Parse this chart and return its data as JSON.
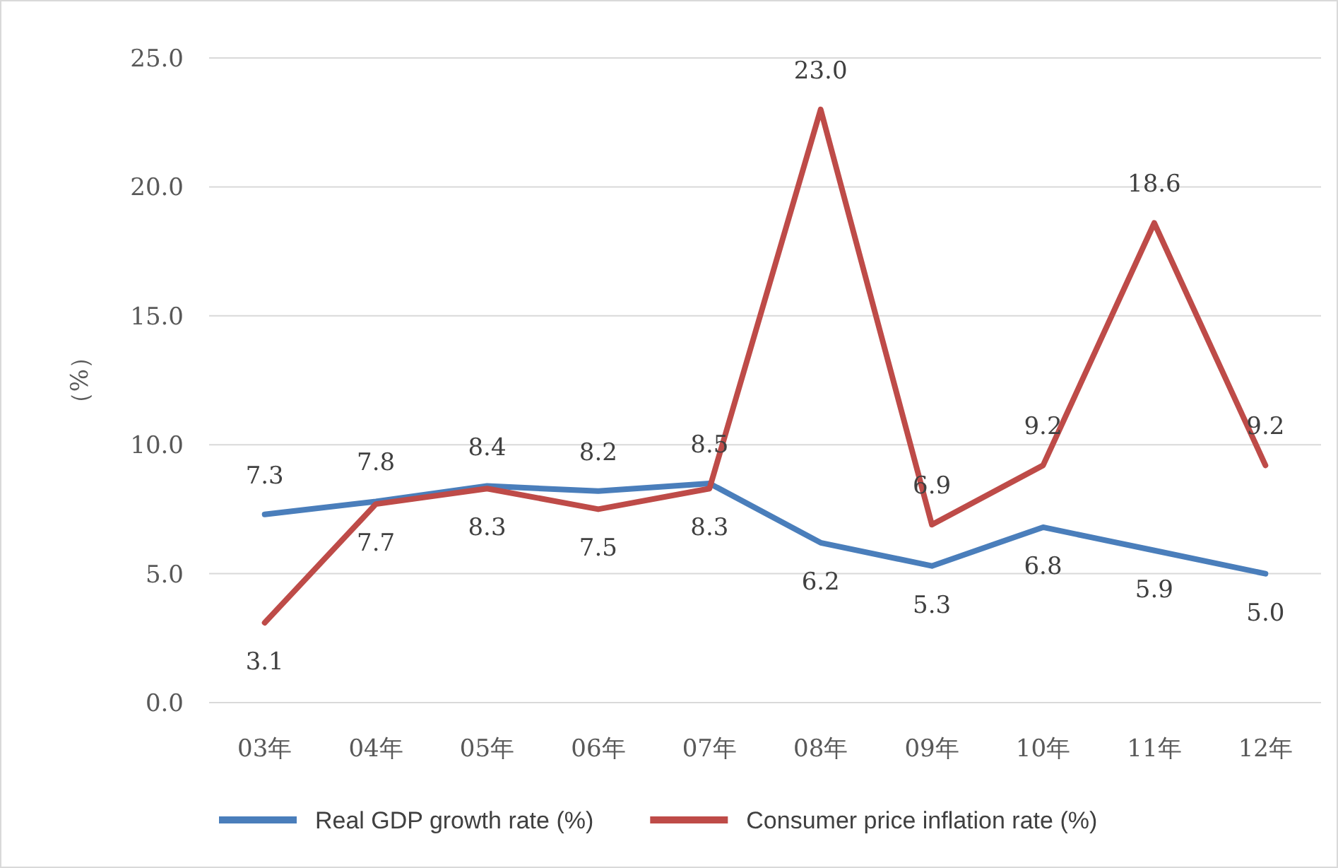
{
  "chart_data": {
    "type": "line",
    "ylabel": "（%）",
    "categories": [
      "03年",
      "04年",
      "05年",
      "06年",
      "07年",
      "08年",
      "09年",
      "10年",
      "11年",
      "12年"
    ],
    "series": [
      {
        "name": "Real GDP growth rate (%)",
        "color": "#4a7ebb",
        "values": [
          7.3,
          7.8,
          8.4,
          8.2,
          8.5,
          6.2,
          5.3,
          6.8,
          5.9,
          5.0
        ],
        "value_labels": [
          "7.3",
          "7.8",
          "8.4",
          "8.2",
          "8.5",
          "6.2",
          "5.3",
          "6.8",
          "5.9",
          "5.0"
        ]
      },
      {
        "name": "Consumer price inflation rate (%)",
        "color": "#be4b48",
        "values": [
          3.1,
          7.7,
          8.3,
          7.5,
          8.3,
          23.0,
          6.9,
          9.2,
          18.6,
          9.2
        ],
        "value_labels": [
          "3.1",
          "7.7",
          "8.3",
          "7.5",
          "8.3",
          "23.0",
          "6.9",
          "9.2",
          "18.6",
          "9.2"
        ]
      }
    ],
    "ylim": [
      0,
      25
    ],
    "yticks": [
      {
        "value": 0,
        "label": "0.0"
      },
      {
        "value": 5,
        "label": "5.0"
      },
      {
        "value": 10,
        "label": "10.0"
      },
      {
        "value": 15,
        "label": "15.0"
      },
      {
        "value": 20,
        "label": "20.0"
      },
      {
        "value": 25,
        "label": "25.0"
      }
    ],
    "grid": "y",
    "legend": "bottom"
  }
}
